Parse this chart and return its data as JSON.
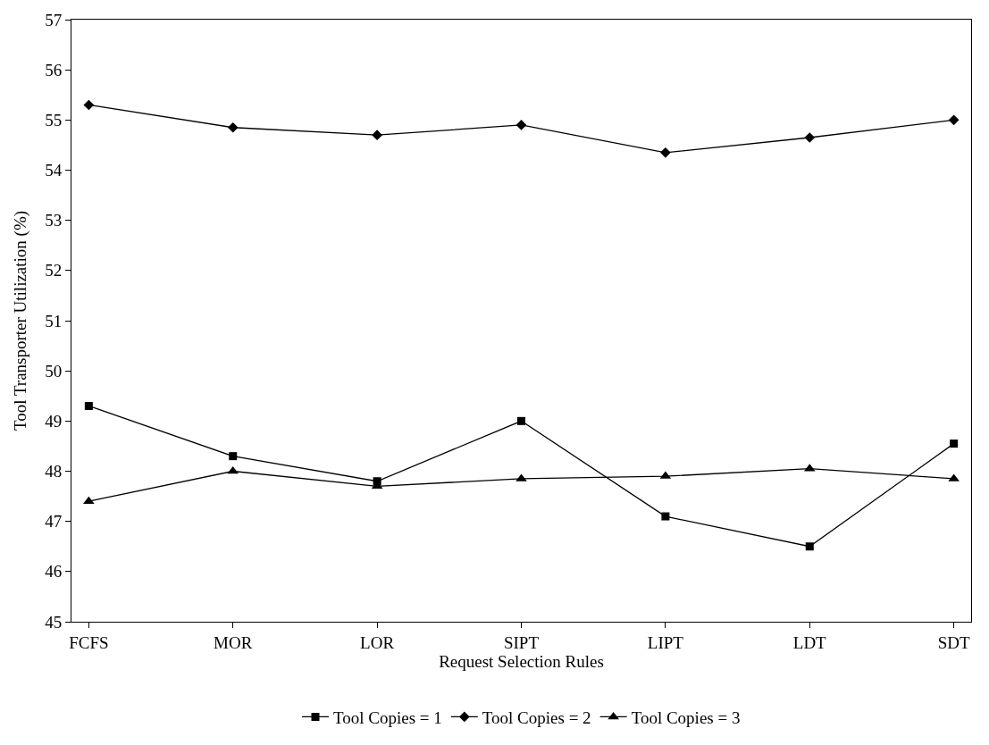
{
  "chart_data": {
    "type": "line",
    "xlabel": "Request Selection Rules",
    "ylabel": "Tool Transporter Utilization (%)",
    "categories": [
      "FCFS",
      "MOR",
      "LOR",
      "SIPT",
      "LIPT",
      "LDT",
      "SDT"
    ],
    "series": [
      {
        "name": "Tool Copies = 1",
        "color": "#000000",
        "marker": "square",
        "values": [
          49.3,
          48.3,
          47.8,
          49.0,
          47.1,
          46.5,
          48.55
        ]
      },
      {
        "name": "Tool Copies = 2",
        "color": "#000000",
        "marker": "diamond",
        "values": [
          55.3,
          54.85,
          54.7,
          54.9,
          54.35,
          54.65,
          55.0
        ]
      },
      {
        "name": "Tool Copies = 3",
        "color": "#000000",
        "marker": "triangle",
        "values": [
          47.4,
          48.0,
          47.7,
          47.85,
          47.9,
          48.05,
          47.85
        ]
      }
    ],
    "ylim": [
      45,
      57
    ],
    "yticks": [
      45,
      46,
      47,
      48,
      49,
      50,
      51,
      52,
      53,
      54,
      55,
      56,
      57
    ],
    "legend": "bottom",
    "line_style": "solid"
  }
}
